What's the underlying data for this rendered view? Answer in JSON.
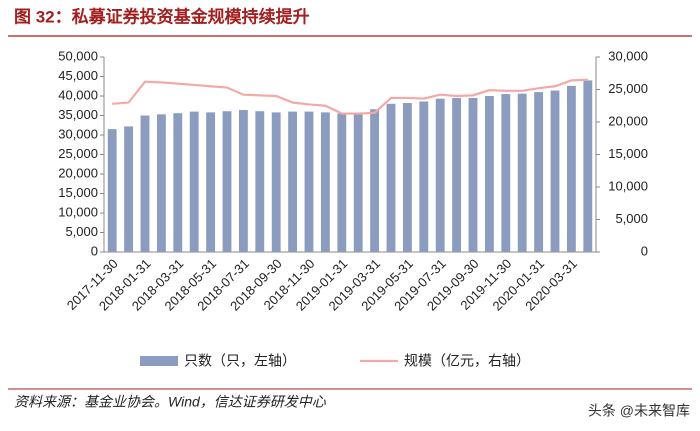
{
  "chart_data": {
    "type": "bar-line",
    "title": "图 32：私募证券投资基金规模持续提升",
    "source": "资料来源：基金业协会。Wind，信达证券研发中心",
    "watermark": "头条 @未来智库",
    "categories": [
      "2017-11-30",
      null,
      "2018-01-31",
      null,
      "2018-03-31",
      null,
      "2018-05-31",
      null,
      "2018-07-31",
      null,
      "2018-09-30",
      null,
      "2018-11-30",
      null,
      "2019-01-31",
      null,
      "2019-03-31",
      null,
      "2019-05-31",
      null,
      "2019-07-31",
      null,
      "2019-09-30",
      null,
      "2019-11-30",
      null,
      "2020-01-31",
      null,
      "2020-03-31",
      null
    ],
    "series": [
      {
        "name": "只数（只，左轴）",
        "type": "bar",
        "color": "#8c9cbf",
        "values": [
          31500,
          32200,
          35000,
          35300,
          35600,
          36000,
          35800,
          36100,
          36400,
          36100,
          35800,
          36000,
          36000,
          35800,
          35500,
          35600,
          36600,
          38000,
          38200,
          38600,
          39300,
          39500,
          39500,
          40000,
          40500,
          40600,
          41000,
          41400,
          42600,
          44000
        ]
      },
      {
        "name": "规模（亿元，右轴）",
        "type": "line",
        "axis": "y2",
        "color": "#f4a9a8",
        "values": [
          22800,
          23000,
          26200,
          26100,
          25900,
          25700,
          25500,
          25300,
          24200,
          24100,
          24000,
          23000,
          22700,
          22500,
          21300,
          21300,
          21400,
          23700,
          23700,
          23600,
          24200,
          24000,
          24100,
          24900,
          24800,
          24800,
          25200,
          25500,
          26400,
          26500
        ]
      }
    ],
    "ylim": [
      0,
      50000
    ],
    "yticks": [
      0,
      {
        "value": 5000,
        "label": "5,000"
      },
      {
        "value": 10000,
        "label": "10,000"
      },
      {
        "value": 15000,
        "label": "15,000"
      },
      {
        "value": 20000,
        "label": "20,000"
      },
      {
        "value": 25000,
        "label": "25,000"
      },
      {
        "value": 30000,
        "label": "30,000"
      },
      {
        "value": 35000,
        "label": "35,000"
      },
      {
        "value": 40000,
        "label": "40,000"
      },
      {
        "value": 45000,
        "label": "45,000"
      },
      {
        "value": 50000,
        "label": "50,000"
      }
    ],
    "y2lim": [
      0,
      30000
    ],
    "y2ticks": [
      0,
      {
        "value": 5000,
        "label": "5,000"
      },
      {
        "value": 10000,
        "label": "10,000"
      },
      {
        "value": 15000,
        "label": "15,000"
      },
      {
        "value": 20000,
        "label": "20,000"
      },
      {
        "value": 25000,
        "label": "25,000"
      },
      {
        "value": 30000,
        "label": "30,000"
      }
    ]
  }
}
